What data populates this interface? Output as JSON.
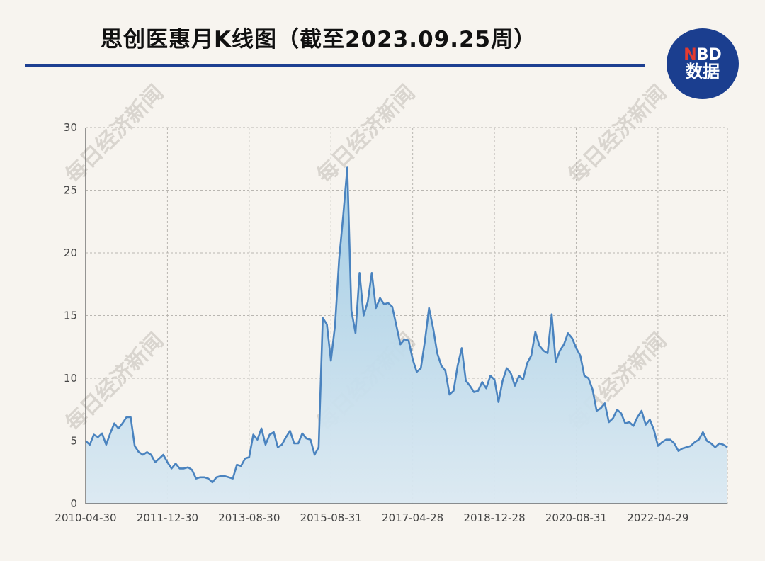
{
  "header": {
    "title": "思创医惠月K线图（截至2023.09.25周）",
    "logo_top_n": "N",
    "logo_top_rest": "BD",
    "logo_bottom": "数据"
  },
  "watermark": "每日经济新闻",
  "colors": {
    "line": "#4a83bf",
    "area_top": "#9fcbe4",
    "area_bottom": "#dbe9f2",
    "title_rule": "#1d3f91",
    "logo_bg": "#1b3e8f",
    "logo_accent": "#e43a2f"
  },
  "chart_data": {
    "type": "area",
    "title": "思创医惠月K线图（截至2023.09.25周）",
    "xlabel": "",
    "ylabel": "",
    "ylim": [
      0,
      30
    ],
    "yticks": [
      0,
      5,
      10,
      15,
      20,
      25,
      30
    ],
    "x_tick_labels": [
      "2010-04-30",
      "2011-12-30",
      "2013-08-30",
      "2015-08-31",
      "2017-04-28",
      "2018-12-28",
      "2020-08-31",
      "2022-04-29"
    ],
    "x_tick_positions": [
      0,
      20,
      40,
      60,
      80,
      100,
      120,
      140
    ],
    "grid": true,
    "series": [
      {
        "values": [
          5.0,
          4.7,
          5.5,
          5.3,
          5.6,
          4.7,
          5.6,
          6.4,
          6.0,
          6.4,
          6.9,
          6.9,
          4.6,
          4.1,
          3.9,
          4.1,
          3.9,
          3.3,
          3.6,
          3.9,
          3.3,
          2.8,
          3.2,
          2.8,
          2.8,
          2.9,
          2.7,
          2.0,
          2.1,
          2.1,
          2.0,
          1.7,
          2.1,
          2.2,
          2.2,
          2.1,
          2.0,
          3.1,
          3.0,
          3.6,
          3.7,
          5.5,
          5.1,
          6.0,
          4.7,
          5.5,
          5.7,
          4.5,
          4.7,
          5.3,
          5.8,
          4.8,
          4.8,
          5.6,
          5.2,
          5.1,
          3.9,
          4.5,
          14.8,
          14.3,
          11.4,
          14.2,
          19.5,
          23.0,
          26.8,
          15.4,
          13.6,
          18.4,
          15.0,
          16.1,
          18.4,
          15.6,
          16.4,
          15.9,
          16.0,
          15.7,
          14.2,
          12.7,
          13.1,
          13.0,
          11.5,
          10.5,
          10.8,
          13.0,
          15.6,
          14.0,
          12.0,
          11.0,
          10.6,
          8.7,
          9.0,
          11.0,
          12.4,
          9.8,
          9.4,
          8.9,
          9.0,
          9.7,
          9.2,
          10.2,
          9.9,
          8.1,
          9.8,
          10.8,
          10.4,
          9.4,
          10.2,
          9.9,
          11.2,
          11.8,
          13.7,
          12.6,
          12.2,
          12.0,
          15.1,
          11.3,
          12.2,
          12.7,
          13.6,
          13.2,
          12.4,
          11.8,
          10.2,
          10.0,
          9.1,
          7.4,
          7.6,
          8.0,
          6.5,
          6.8,
          7.5,
          7.2,
          6.4,
          6.5,
          6.2,
          6.9,
          7.4,
          6.3,
          6.7,
          5.9,
          4.6,
          4.9,
          5.1,
          5.1,
          4.8,
          4.2,
          4.4,
          4.5,
          4.6,
          4.9,
          5.1,
          5.7,
          5.0,
          4.8,
          4.5,
          4.8,
          4.7,
          4.5
        ]
      }
    ]
  }
}
